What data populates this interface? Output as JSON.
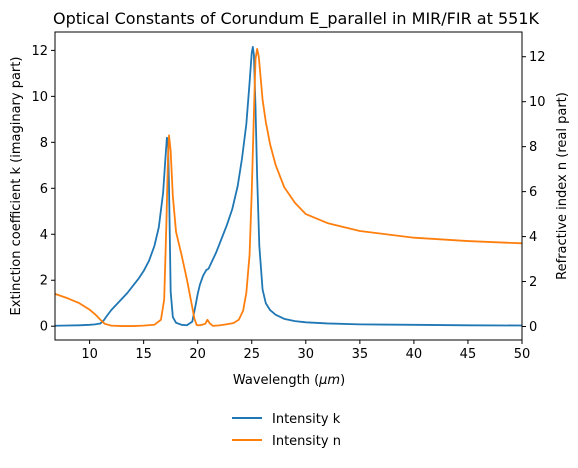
{
  "chart_data": {
    "type": "line",
    "title": "Optical Constants of Corundum E_parallel in MIR/FIR at 551K",
    "xlabel_prefix": "Wavelength (",
    "xlabel_unit": "μm",
    "xlabel_suffix": ")",
    "ylabel_left": "Extinction coefficient k (imaginary part)",
    "ylabel_right": "Refractive index n (real part)",
    "xlim": [
      6.8,
      50
    ],
    "ylim_left": [
      -0.6,
      12.8
    ],
    "ylim_right": [
      -0.6,
      13.1
    ],
    "x_ticks": [
      10,
      15,
      20,
      25,
      30,
      35,
      40,
      45,
      50
    ],
    "y_ticks_left": [
      0,
      2,
      4,
      6,
      8,
      10,
      12
    ],
    "y_ticks_right": [
      0,
      2,
      4,
      6,
      8,
      10,
      12
    ],
    "legend_position": "bottom-center (below plot)",
    "series": [
      {
        "name": "Intensity k",
        "color": "#1f77b4",
        "axis": "left",
        "x": [
          6.8,
          8,
          9,
          10,
          10.5,
          11,
          11.3,
          11.6,
          12,
          12.5,
          13,
          13.5,
          14,
          14.5,
          15,
          15.5,
          16,
          16.4,
          16.8,
          17.0,
          17.15,
          17.25,
          17.35,
          17.5,
          17.7,
          18.0,
          18.5,
          19.0,
          19.5,
          19.8,
          20.0,
          20.2,
          20.5,
          20.8,
          21.0,
          21.3,
          21.7,
          22.2,
          22.7,
          23.2,
          23.7,
          24.1,
          24.5,
          24.8,
          25.0,
          25.1,
          25.2,
          25.35,
          25.5,
          25.7,
          26.0,
          26.3,
          26.7,
          27.2,
          28,
          29,
          30,
          32,
          35,
          40,
          45,
          50
        ],
        "values": [
          0.02,
          0.03,
          0.04,
          0.06,
          0.08,
          0.12,
          0.25,
          0.45,
          0.7,
          0.95,
          1.2,
          1.45,
          1.75,
          2.05,
          2.4,
          2.85,
          3.5,
          4.3,
          5.8,
          7.2,
          8.2,
          8.1,
          6.0,
          1.5,
          0.4,
          0.15,
          0.06,
          0.04,
          0.2,
          0.9,
          1.4,
          1.8,
          2.2,
          2.45,
          2.5,
          2.8,
          3.2,
          3.8,
          4.4,
          5.1,
          6.1,
          7.3,
          8.8,
          10.6,
          11.9,
          12.15,
          11.8,
          9.5,
          6.5,
          3.5,
          1.6,
          1.0,
          0.7,
          0.5,
          0.32,
          0.22,
          0.17,
          0.12,
          0.08,
          0.06,
          0.04,
          0.03
        ]
      },
      {
        "name": "Intensity n",
        "color": "#ff7f0e",
        "axis": "right",
        "x": [
          6.8,
          8,
          9,
          10,
          10.5,
          11,
          11.4,
          12,
          13,
          14,
          15,
          16,
          16.6,
          16.9,
          17.1,
          17.25,
          17.35,
          17.5,
          17.7,
          18.0,
          18.5,
          19.0,
          19.4,
          19.7,
          19.9,
          20.1,
          20.4,
          20.7,
          20.9,
          21.1,
          21.4,
          22,
          22.7,
          23.3,
          23.8,
          24.2,
          24.5,
          24.8,
          25.0,
          25.2,
          25.35,
          25.5,
          25.65,
          25.8,
          26.0,
          26.3,
          26.7,
          27.2,
          28,
          29,
          30,
          32,
          35,
          40,
          45,
          50
        ],
        "values": [
          1.45,
          1.25,
          1.05,
          0.75,
          0.55,
          0.3,
          0.12,
          0.04,
          0.02,
          0.02,
          0.04,
          0.08,
          0.3,
          1.2,
          4.5,
          7.5,
          8.5,
          7.8,
          5.8,
          4.2,
          3.2,
          2.1,
          1.1,
          0.35,
          0.07,
          0.05,
          0.08,
          0.12,
          0.3,
          0.15,
          0.03,
          0.05,
          0.1,
          0.15,
          0.3,
          0.7,
          1.5,
          3.2,
          6.0,
          9.5,
          11.9,
          12.35,
          12.0,
          11.2,
          10.1,
          9.1,
          8.1,
          7.2,
          6.2,
          5.5,
          5.0,
          4.6,
          4.25,
          3.95,
          3.8,
          3.7
        ]
      }
    ]
  }
}
